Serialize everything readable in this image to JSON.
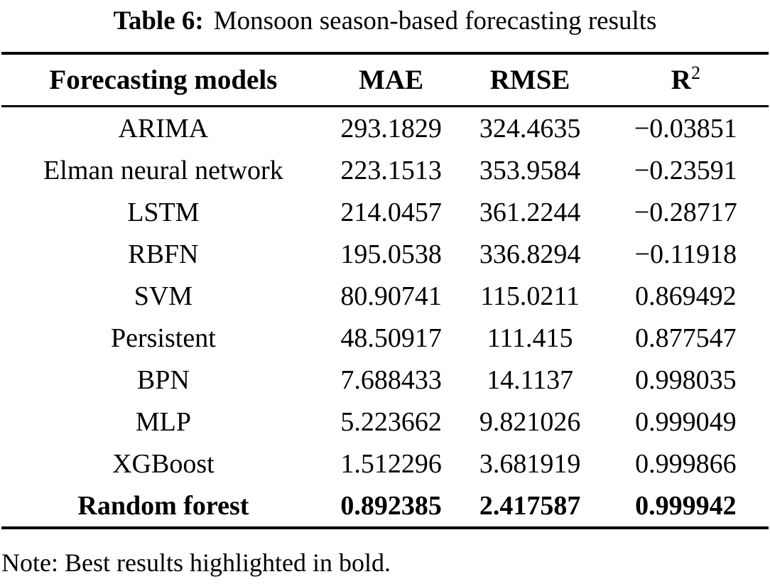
{
  "caption": {
    "label": "Table 6:",
    "text": "Monsoon season-based forecasting results"
  },
  "table": {
    "headers": {
      "model": "Forecasting models",
      "mae": "MAE",
      "rmse": "RMSE",
      "r2_base": "R",
      "r2_sup": "2"
    },
    "rows": [
      {
        "model": "ARIMA",
        "mae": "293.1829",
        "rmse": "324.4635",
        "r2": "−0.03851",
        "bold": false
      },
      {
        "model": "Elman neural network",
        "mae": "223.1513",
        "rmse": "353.9584",
        "r2": "−0.23591",
        "bold": false
      },
      {
        "model": "LSTM",
        "mae": "214.0457",
        "rmse": "361.2244",
        "r2": "−0.28717",
        "bold": false
      },
      {
        "model": "RBFN",
        "mae": "195.0538",
        "rmse": "336.8294",
        "r2": "−0.11918",
        "bold": false
      },
      {
        "model": "SVM",
        "mae": "80.90741",
        "rmse": "115.0211",
        "r2": "0.869492",
        "bold": false
      },
      {
        "model": "Persistent",
        "mae": "48.50917",
        "rmse": "111.415",
        "r2": "0.877547",
        "bold": false
      },
      {
        "model": "BPN",
        "mae": "7.688433",
        "rmse": "14.1137",
        "r2": "0.998035",
        "bold": false
      },
      {
        "model": "MLP",
        "mae": "5.223662",
        "rmse": "9.821026",
        "r2": "0.999049",
        "bold": false
      },
      {
        "model": "XGBoost",
        "mae": "1.512296",
        "rmse": "3.681919",
        "r2": "0.999866",
        "bold": false
      },
      {
        "model": "Random forest",
        "mae": "0.892385",
        "rmse": "2.417587",
        "r2": "0.999942",
        "bold": true
      }
    ]
  },
  "note": "Note: Best results highlighted in bold.",
  "colors": {
    "text": "#000000",
    "background": "#ffffff",
    "rule": "#000000"
  }
}
